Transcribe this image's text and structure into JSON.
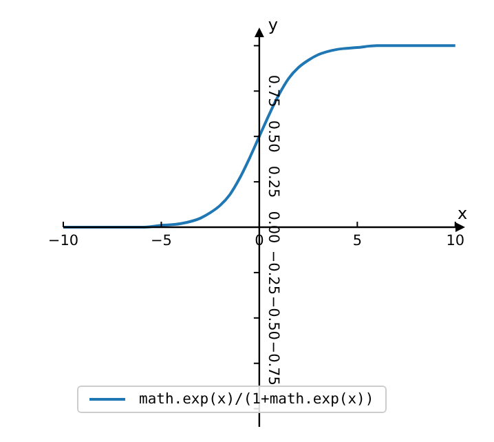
{
  "chart_data": {
    "type": "line",
    "xlabel": "x",
    "ylabel": "y",
    "x": [
      -10,
      -8,
      -6,
      -5,
      -4,
      -3,
      -2.5,
      -2,
      -1.5,
      -1,
      -0.5,
      0,
      0.5,
      1,
      1.5,
      2,
      2.5,
      3,
      4,
      5,
      6,
      8,
      10
    ],
    "series": [
      {
        "name": "math.exp(x)/(1+math.exp(x))",
        "color": "#1f77b4",
        "values": [
          0,
          0,
          0,
          0.01,
          0.02,
          0.05,
          0.08,
          0.12,
          0.18,
          0.27,
          0.38,
          0.5,
          0.62,
          0.73,
          0.82,
          0.88,
          0.92,
          0.95,
          0.98,
          0.99,
          1,
          1,
          1
        ]
      }
    ],
    "xlim": [
      -10,
      10.5
    ],
    "ylim": [
      -1.1,
      1.1
    ],
    "xticks": [
      {
        "value": -10,
        "label": "−10"
      },
      {
        "value": -5,
        "label": "−5"
      },
      {
        "value": 0,
        "label": "0"
      },
      {
        "value": 5,
        "label": "5"
      },
      {
        "value": 10,
        "label": "10"
      }
    ],
    "yticks": [
      {
        "value": -1,
        "label": null
      },
      {
        "value": -0.75,
        "label": "−0.75"
      },
      {
        "value": -0.5,
        "label": "−0.50"
      },
      {
        "value": -0.25,
        "label": "−0.25"
      },
      {
        "value": 0,
        "label": "0.00"
      },
      {
        "value": 0.25,
        "label": "0.25"
      },
      {
        "value": 0.5,
        "label": "0.50"
      },
      {
        "value": 0.75,
        "label": "0.75"
      },
      {
        "value": 1,
        "label": null
      }
    ],
    "grid": false,
    "legend": "bottom",
    "marker": "none",
    "line_style": "solid"
  }
}
